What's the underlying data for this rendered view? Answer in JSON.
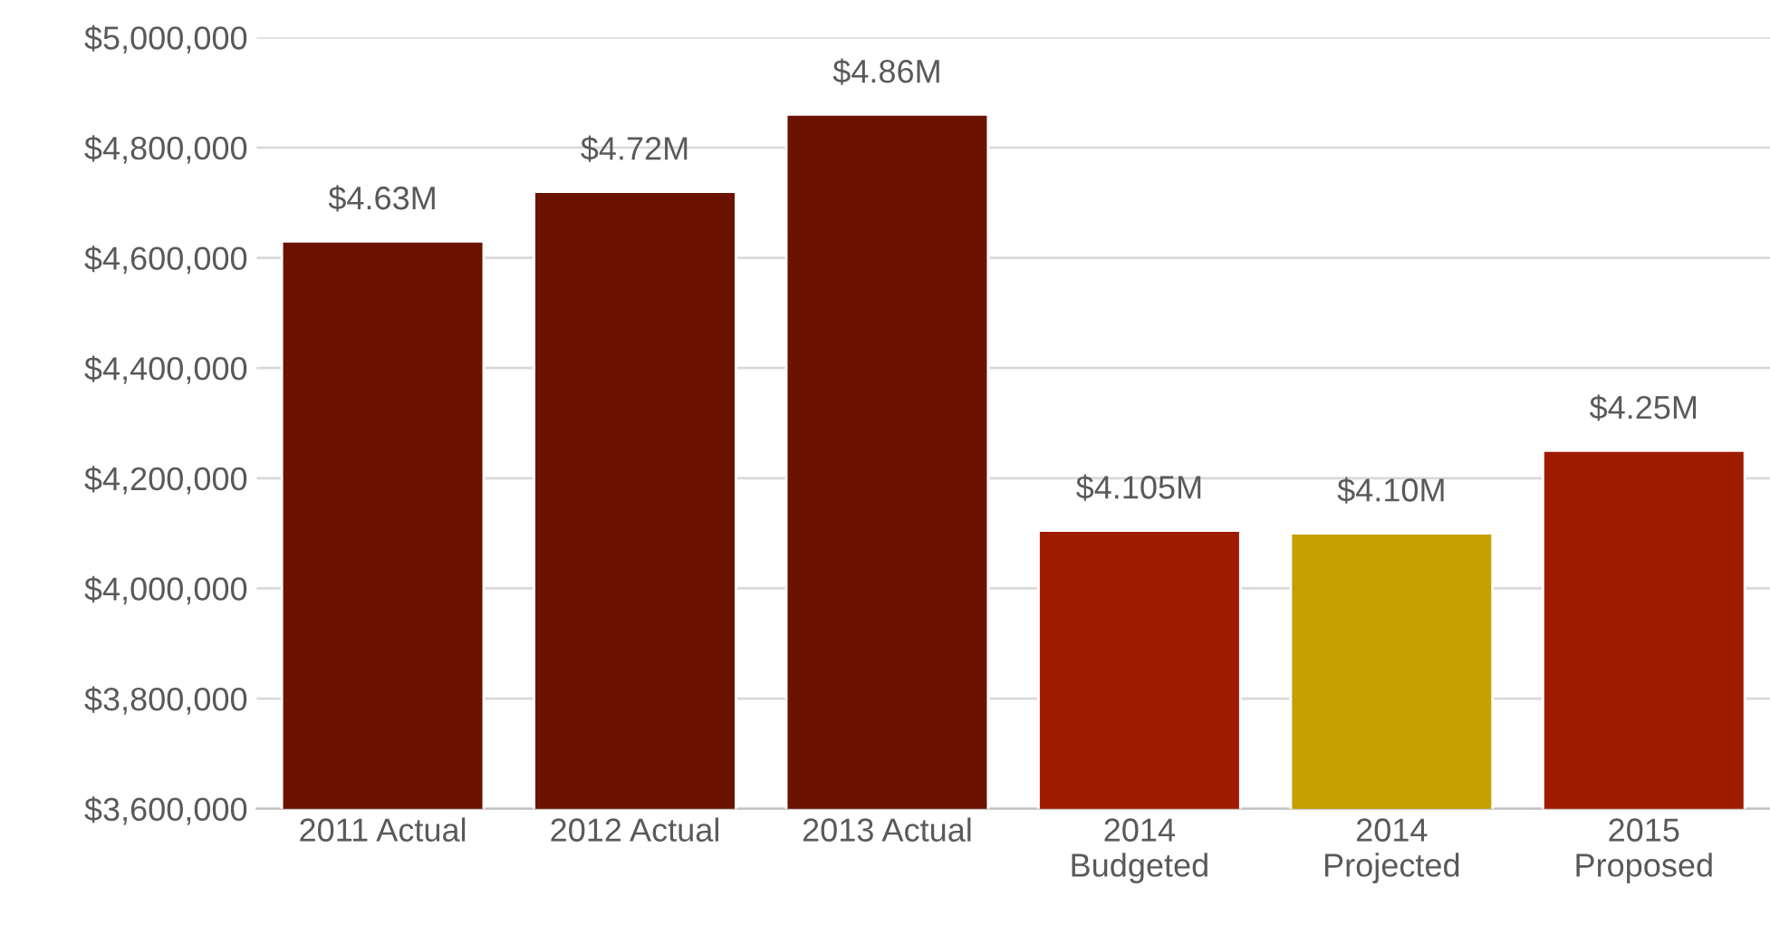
{
  "chart_data": {
    "type": "bar",
    "categories": [
      "2011 Actual",
      "2012 Actual",
      "2013 Actual",
      "2014\nBudgeted",
      "2014\nProjected",
      "2015\nProposed"
    ],
    "values": [
      4630000,
      4720000,
      4860000,
      4105000,
      4100000,
      4250000
    ],
    "colors": [
      "#6b1200",
      "#6b1200",
      "#6b1200",
      "#a01c00",
      "#c4a000",
      "#a01c00"
    ],
    "value_labels": [
      "$4.63M",
      "$4.72M",
      "$4.86M",
      "$4.105M",
      "$4.10M",
      "$4.25M"
    ],
    "ylim": [
      3600000,
      5000000
    ],
    "yticks": [
      {
        "value": 3600000,
        "label": "$3,600,000"
      },
      {
        "value": 3800000,
        "label": "$3,800,000"
      },
      {
        "value": 4000000,
        "label": "$4,000,000"
      },
      {
        "value": 4200000,
        "label": "$4,200,000"
      },
      {
        "value": 4400000,
        "label": "$4,400,000"
      },
      {
        "value": 4600000,
        "label": "$4,600,000"
      },
      {
        "value": 4800000,
        "label": "$4,800,000"
      },
      {
        "value": 5000000,
        "label": "$5,000,000"
      }
    ],
    "grid": "y",
    "legend": false
  }
}
